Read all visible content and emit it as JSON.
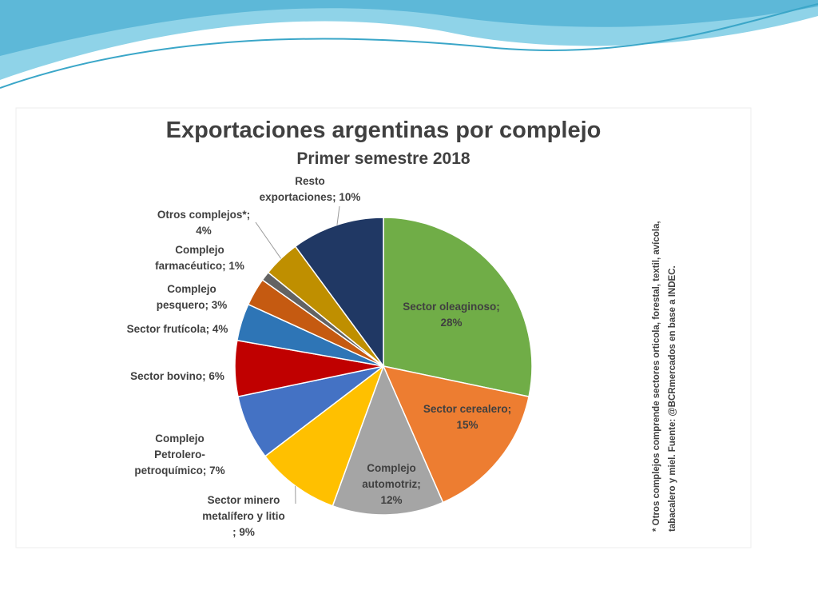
{
  "chart_data": {
    "type": "pie",
    "title": "Exportaciones argentinas por complejo",
    "subtitle": "Primer semestre 2018",
    "categories": [
      "Sector oleaginoso",
      "Sector cerealero",
      "Complejo automotriz",
      "Sector minero metalífero y litio",
      "Complejo Petrolero-petroquímico",
      "Sector bovino",
      "Sector frutícola",
      "Complejo pesquero",
      "Complejo farmacéutico",
      "Otros complejos*",
      "Resto exportaciones"
    ],
    "values": [
      28,
      15,
      12,
      9,
      7,
      6,
      4,
      3,
      1,
      4,
      10
    ],
    "value_labels": [
      "Sector oleaginoso;\n28%",
      "Sector cerealero;\n15%",
      "Complejo\nautomotriz;\n12%",
      "Sector minero\nmetalífero y litio\n; 9%",
      "Complejo\nPetrolero-\npetroquímico; 7%",
      "Sector bovino; 6%",
      "Sector frutícola; 4%",
      "Complejo\npesquero; 3%",
      "Complejo\nfarmacéutico; 1%",
      "Otros complejos*;\n4%",
      "Resto\nexportaciones; 10%"
    ],
    "colors": [
      "#70ad47",
      "#ed7d31",
      "#a5a5a5",
      "#ffc000",
      "#4472c4",
      "#c00000",
      "#2e75b6",
      "#c55a11",
      "#636363",
      "#bf8f00",
      "#203864"
    ],
    "footnote": [
      "* Otros complejos comprende sectores orticola, forestal, textil, avícola,",
      "tabacalero y miel. Fuente: @BCRmercados  en base a INDEC."
    ]
  }
}
